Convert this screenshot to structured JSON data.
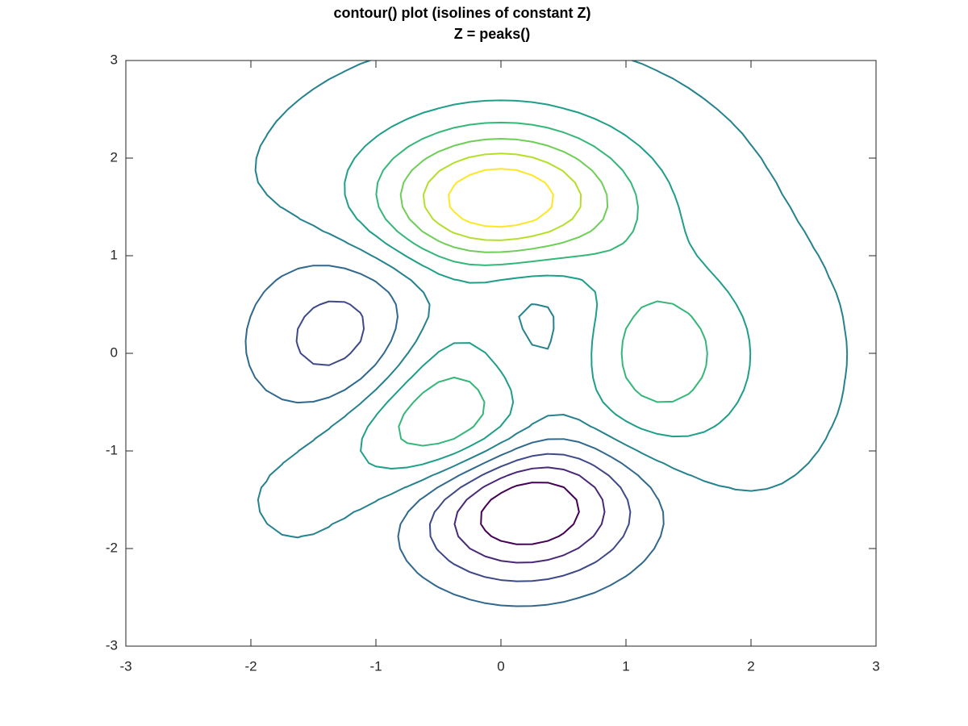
{
  "chart_data": {
    "type": "contour",
    "title": [
      "contour() plot (isolines of constant Z)",
      "Z = peaks()"
    ],
    "levels": [
      -5.22,
      -3.89,
      -2.56,
      -1.23,
      0.1,
      1.43,
      2.76,
      4.1,
      5.43,
      6.76
    ],
    "colors": [
      "#440154",
      "#482878",
      "#3e4989",
      "#31688e",
      "#26828e",
      "#1f9e89",
      "#35b779",
      "#6ece58",
      "#b5de2b",
      "#fde725"
    ],
    "xlim": [
      -3,
      3
    ],
    "ylim": [
      -3,
      3
    ],
    "xticks": [
      -3,
      -2,
      -1,
      0,
      1,
      2,
      3
    ],
    "yticks": [
      -3,
      -2,
      -1,
      0,
      1,
      2,
      3
    ]
  }
}
